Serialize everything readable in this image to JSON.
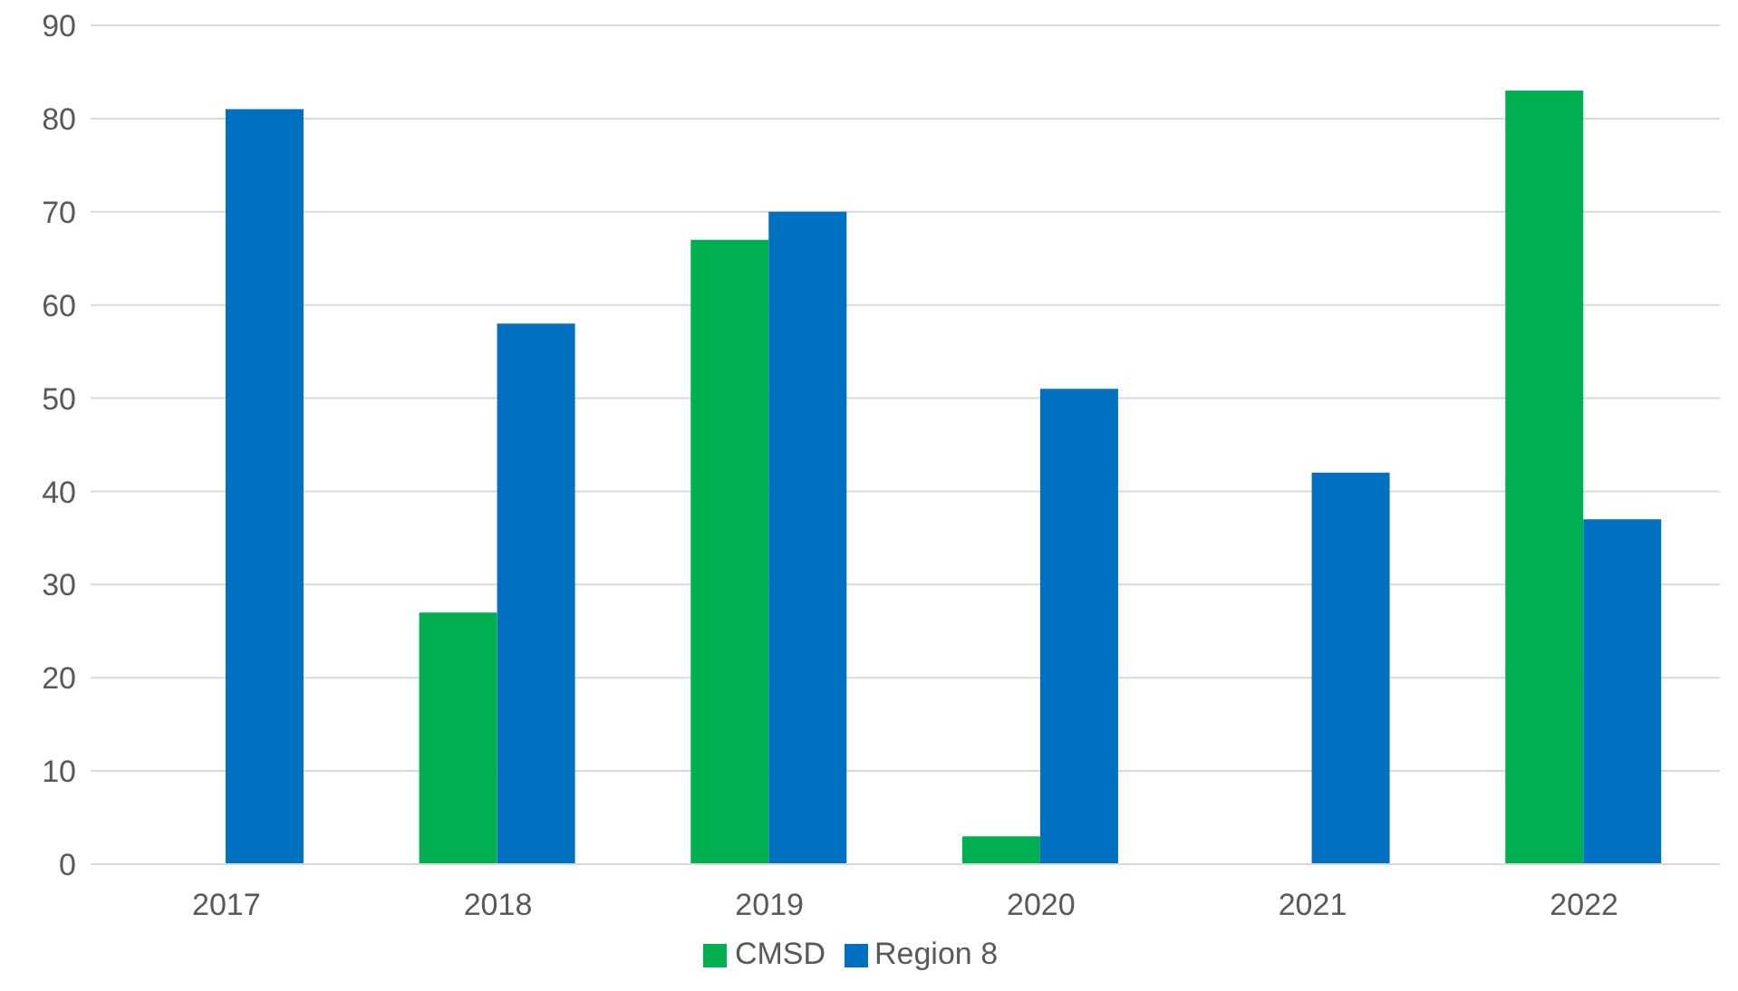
{
  "chart_data": {
    "type": "bar",
    "categories": [
      "2017",
      "2018",
      "2019",
      "2020",
      "2021",
      "2022"
    ],
    "series": [
      {
        "name": "CMSD",
        "color": "#00b050",
        "values": [
          0,
          27,
          67,
          3,
          0,
          83
        ]
      },
      {
        "name": "Region 8",
        "color": "#0070c0",
        "values": [
          81,
          58,
          70,
          51,
          42,
          37
        ]
      }
    ],
    "ylim": [
      0,
      90
    ],
    "yticks": [
      0,
      10,
      20,
      30,
      40,
      50,
      60,
      70,
      80,
      90
    ],
    "grid": "y",
    "legend": "bottom"
  }
}
